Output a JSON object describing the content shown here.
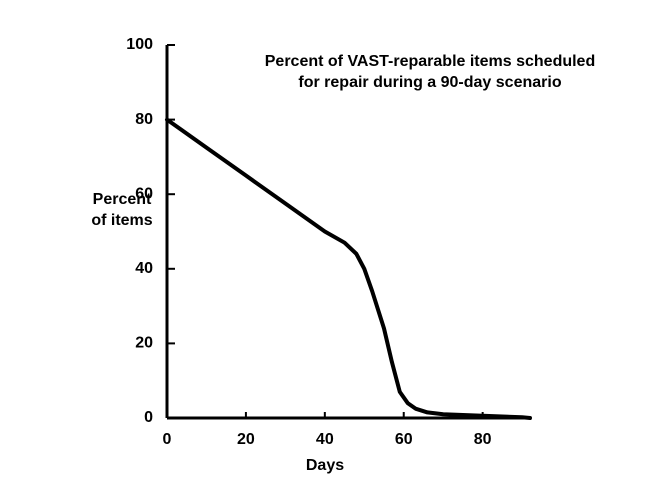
{
  "chart_data": {
    "type": "line",
    "title": [
      "Percent of VAST-reparable items scheduled",
      "for repair during a 90-day scenario"
    ],
    "ylabel": [
      "Percent",
      "of items"
    ],
    "xlabel": "Days",
    "x": [
      0,
      10,
      20,
      30,
      40,
      45,
      48,
      50,
      52,
      55,
      57,
      59,
      61,
      63,
      66,
      70,
      80,
      90,
      92
    ],
    "series": [
      {
        "name": null,
        "color": "#000000",
        "values": [
          80,
          72.5,
          65,
          57.5,
          50,
          47,
          44,
          40,
          34,
          24,
          15,
          7,
          4,
          2.5,
          1.5,
          1,
          0.6,
          0.2,
          0
        ]
      }
    ],
    "xlim": [
      0,
      92
    ],
    "ylim": [
      0,
      100
    ],
    "xticks": [
      0,
      20,
      40,
      60,
      80
    ],
    "yticks": [
      0,
      20,
      40,
      60,
      80,
      100
    ]
  }
}
